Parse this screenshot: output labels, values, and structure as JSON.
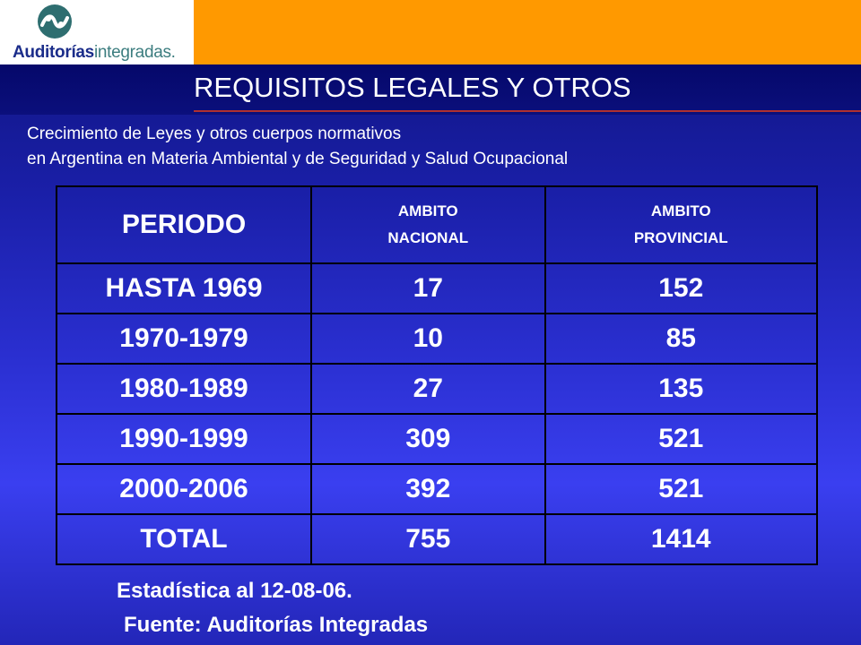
{
  "logo": {
    "brand_bold": "Auditorías",
    "brand_light": "integradas."
  },
  "title": "REQUISITOS LEGALES Y OTROS",
  "subtitle": {
    "line1": "Crecimiento de Leyes y otros cuerpos normativos",
    "line2": "en Argentina en Materia Ambiental y de Seguridad y Salud Ocupacional"
  },
  "table": {
    "headers": {
      "period": "PERIODO",
      "nacional_line1": "AMBITO",
      "nacional_line2": "NACIONAL",
      "provincial_line1": "AMBITO",
      "provincial_line2": "PROVINCIAL"
    },
    "rows": [
      {
        "period": "HASTA 1969",
        "nacional": "17",
        "provincial": "152"
      },
      {
        "period": "1970-1979",
        "nacional": "10",
        "provincial": "85"
      },
      {
        "period": "1980-1989",
        "nacional": "27",
        "provincial": "135"
      },
      {
        "period": "1990-1999",
        "nacional": "309",
        "provincial": "521"
      },
      {
        "period": "2000-2006",
        "nacional": "392",
        "provincial": "521"
      },
      {
        "period": "TOTAL",
        "nacional": "755",
        "provincial": "1414"
      }
    ]
  },
  "footer": {
    "stat_date": "Estadística al 12-08-06.",
    "source": "Fuente: Auditorías Integradas"
  },
  "colors": {
    "background": "#1a1fa8",
    "accent": "#ff9900",
    "title_band": "#05086a"
  }
}
